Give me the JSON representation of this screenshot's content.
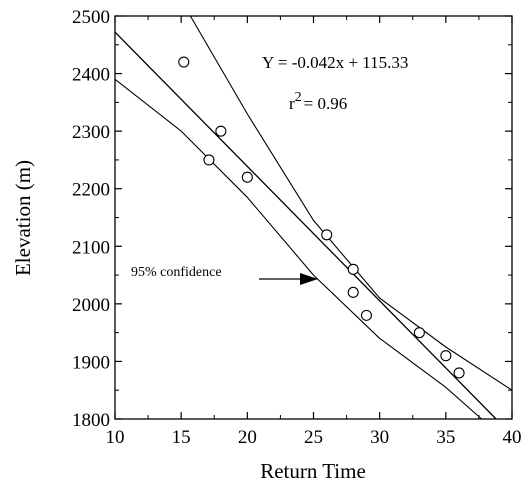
{
  "chart_data": {
    "type": "scatter",
    "title": "",
    "xlabel": "Return Time",
    "ylabel": "Elevation (m)",
    "xlim": [
      10,
      40
    ],
    "ylim": [
      1800,
      2500
    ],
    "x_ticks": [
      "10",
      "15",
      "20",
      "25",
      "30",
      "35",
      "40"
    ],
    "y_ticks": [
      "1800",
      "1900",
      "2000",
      "2100",
      "2200",
      "2300",
      "2400",
      "2500"
    ],
    "grid": false,
    "points": [
      {
        "x": 15.2,
        "y": 2420
      },
      {
        "x": 17.1,
        "y": 2250
      },
      {
        "x": 18.0,
        "y": 2300
      },
      {
        "x": 20.0,
        "y": 2220
      },
      {
        "x": 26.0,
        "y": 2120
      },
      {
        "x": 28.0,
        "y": 2060
      },
      {
        "x": 28.0,
        "y": 2020
      },
      {
        "x": 29.0,
        "y": 1980
      },
      {
        "x": 33.0,
        "y": 1950
      },
      {
        "x": 35.0,
        "y": 1910
      },
      {
        "x": 36.0,
        "y": 1880
      }
    ],
    "fit_line": {
      "x": [
        10,
        38.8
      ],
      "y": [
        2472,
        1800
      ]
    },
    "confidence_upper": {
      "x": [
        15.7,
        20,
        25,
        30,
        35,
        40
      ],
      "y": [
        2500,
        2330,
        2145,
        2010,
        1925,
        1850
      ]
    },
    "confidence_lower": {
      "x": [
        10,
        15,
        20,
        25,
        30,
        35,
        37.7
      ],
      "y": [
        2390,
        2300,
        2185,
        2050,
        1940,
        1855,
        1800
      ]
    },
    "annotations": {
      "equation": "Y = -0.042x + 115.33",
      "r2_base": "r",
      "r2_sup": "2",
      "r2_rest": "= 0.96",
      "confidence": "95% confidence"
    }
  }
}
